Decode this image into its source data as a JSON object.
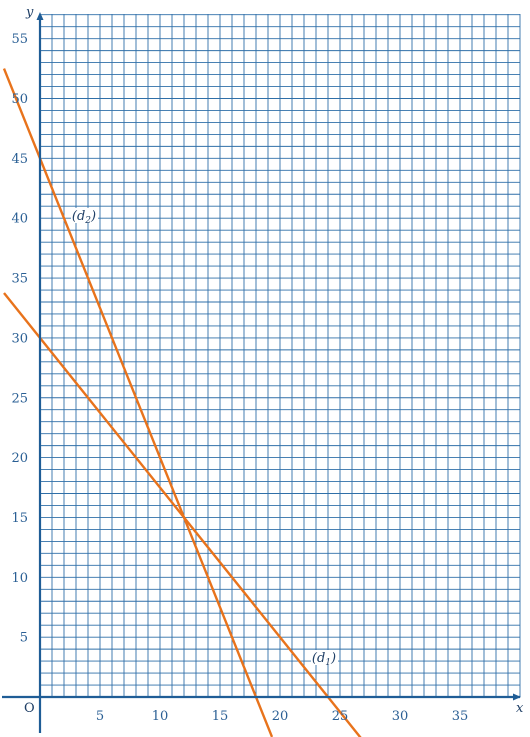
{
  "chart_data": {
    "type": "line",
    "title": "",
    "xlabel": "x",
    "ylabel": "y",
    "origin_label": "O",
    "xlim": [
      -2.5,
      40
    ],
    "ylim": [
      -3,
      57
    ],
    "grid": true,
    "x_ticks": [
      5,
      10,
      15,
      20,
      25,
      30,
      35
    ],
    "y_ticks": [
      5,
      10,
      15,
      20,
      25,
      30,
      35,
      40,
      45,
      50,
      55
    ],
    "colors": {
      "grid": "#2f6fa8",
      "axis": "#1f5d96",
      "line": "#e8731c"
    },
    "series": [
      {
        "name": "d1",
        "label_base": "d",
        "label_sub": "1",
        "x": [
          -3,
          27.5
        ],
        "y": [
          33.75,
          -4.375
        ]
      },
      {
        "name": "d2",
        "label_base": "d",
        "label_sub": "2",
        "x": [
          -3,
          19.333
        ],
        "y": [
          52.5,
          -3.333
        ]
      }
    ],
    "intersection": {
      "x": 12,
      "y": 15
    }
  }
}
